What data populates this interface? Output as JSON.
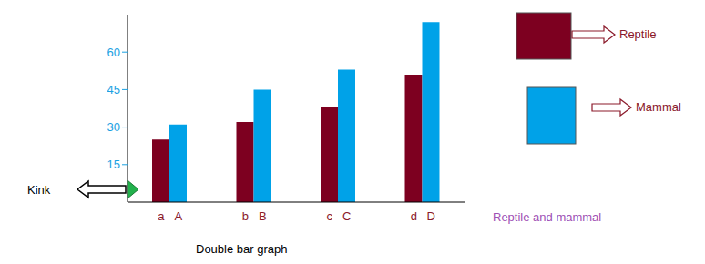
{
  "chart_data": {
    "type": "bar",
    "title": "Double bar graph",
    "categories": [
      null,
      null,
      null,
      null
    ],
    "series": [
      {
        "name": "Reptile",
        "color": "#7d0020",
        "values": [
          25,
          32,
          38,
          51
        ],
        "labels": [
          "a",
          "b",
          "c",
          "d"
        ]
      },
      {
        "name": "Mammal",
        "color": "#00a2e8",
        "values": [
          31,
          45,
          53,
          72
        ],
        "labels": [
          "A",
          "B",
          "C",
          "D"
        ]
      }
    ],
    "ylim": [
      0,
      75
    ],
    "yticks": [
      15,
      30,
      45,
      60
    ],
    "grid": false,
    "legend": "upper right",
    "annotations": [
      {
        "text": "Kink"
      },
      {
        "text": "Reptile and mammal"
      }
    ]
  }
}
